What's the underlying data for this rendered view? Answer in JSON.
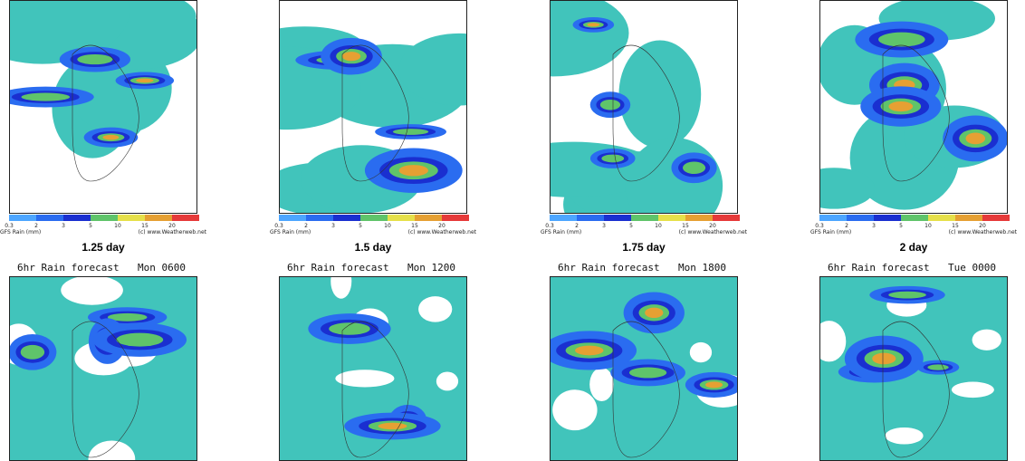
{
  "top_panels": [
    {
      "colorbar_labels": [
        "0.3",
        "2",
        "3",
        "5",
        "10",
        "15",
        "20"
      ],
      "colorbar_title": "GFS Rain (mm)",
      "credit": "(c) www.Weatherweb.net",
      "caption": "1.25 day"
    },
    {
      "colorbar_labels": [
        "0.3",
        "2",
        "3",
        "5",
        "10",
        "15",
        "20"
      ],
      "colorbar_title": "GFS Rain (mm)",
      "credit": "(c) www.Weatherweb.net",
      "caption": "1.5 day"
    },
    {
      "colorbar_labels": [
        "0.3",
        "2",
        "3",
        "5",
        "10",
        "15",
        "20"
      ],
      "colorbar_title": "GFS Rain (mm)",
      "credit": "(c) www.Weatherweb.net",
      "caption": "1.75 day"
    },
    {
      "colorbar_labels": [
        "0.3",
        "2",
        "3",
        "5",
        "10",
        "15",
        "20"
      ],
      "colorbar_title": "GFS Rain (mm)",
      "credit": "(c) www.Weatherweb.net",
      "caption": "2 day"
    }
  ],
  "bottom_panels": [
    {
      "title": "6hr Rain forecast",
      "time": "Mon 0600"
    },
    {
      "title": "6hr Rain forecast",
      "time": "Mon 1200"
    },
    {
      "title": "6hr Rain forecast",
      "time": "Mon 1800"
    },
    {
      "title": "6hr Rain forecast",
      "time": "Tue 0000"
    }
  ]
}
